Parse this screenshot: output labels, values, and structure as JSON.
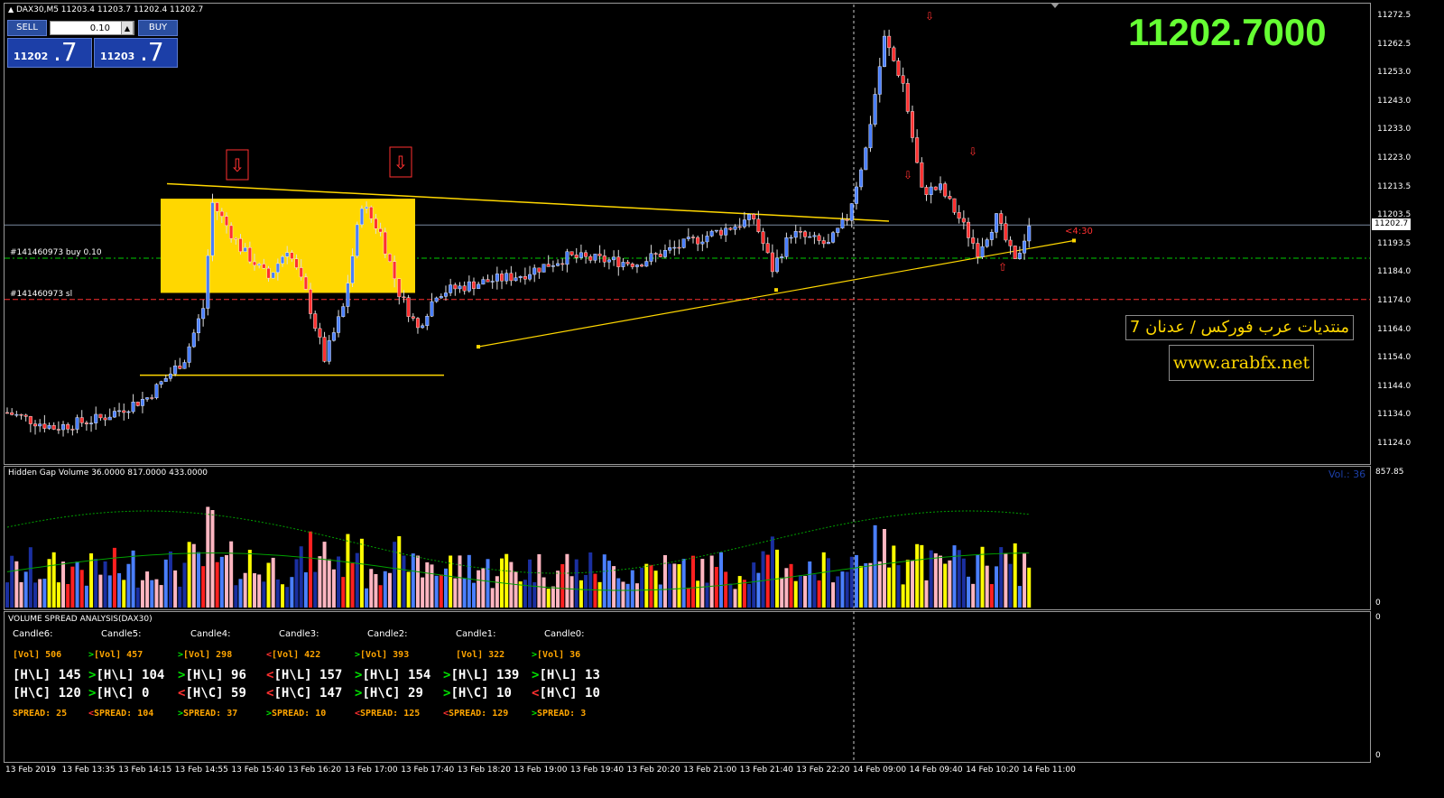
{
  "chart_header": "DAX30,M5  11203.4 11203.7 11202.4 11202.7",
  "big_price": "11202.7000",
  "trade_panel": {
    "sell_label": "SELL",
    "buy_label": "BUY",
    "lot": "0.10",
    "sell_main": "11202",
    "sell_big": ".7",
    "buy_main": "11203",
    "buy_big": ".7"
  },
  "order_lines": {
    "buy_label": "#141460973 buy 0.10",
    "sl_label": "#141460973 sl"
  },
  "countdown": "<4:30",
  "watermark": {
    "arabic": "منتديات عرب فوركس / عدنان 7",
    "url": "www.arabfx.net"
  },
  "price_axis": {
    "labels": [
      "11272.5",
      "11262.5",
      "11253.0",
      "11243.0",
      "11233.0",
      "11223.0",
      "11213.5",
      "11203.5",
      "11193.5",
      "11184.0",
      "11174.0",
      "11164.0",
      "11154.0",
      "11144.0",
      "11134.0",
      "11124.0"
    ],
    "current": "11202.7"
  },
  "volume_panel": {
    "title": "Hidden Gap Volume 36.0000 817.0000 433.0000",
    "max_label": "857.85",
    "zero_label": "0",
    "vol_label": "Vol.: 36"
  },
  "vsa_panel": {
    "title": "VOLUME SPREAD ANALYSIS(DAX30)",
    "zero_label": "0",
    "bottom_zero": "0",
    "candles": [
      {
        "name": "Candle6:",
        "vol_arrow": "",
        "vol": "[Vol] 506",
        "hl_arrow": "",
        "hl": "[H\\L] 145",
        "hc_arrow": "",
        "hc": "[H\\C] 120",
        "sp_arrow": "",
        "sp": "SPREAD:  25"
      },
      {
        "name": "Candle5:",
        "vol_arrow": ">",
        "vol": "[Vol] 457",
        "hl_arrow": ">",
        "hl": "[H\\L] 104",
        "hc_arrow": ">",
        "hc": "[H\\C] 0",
        "sp_arrow": "<",
        "sp": "SPREAD:  104"
      },
      {
        "name": "Candle4:",
        "vol_arrow": ">",
        "vol": "[Vol] 298",
        "hl_arrow": ">",
        "hl": "[H\\L] 96",
        "hc_arrow": "<",
        "hc": "[H\\C] 59",
        "sp_arrow": ">",
        "sp": "SPREAD:  37"
      },
      {
        "name": "Candle3:",
        "vol_arrow": "<",
        "vol": "[Vol] 422",
        "hl_arrow": "<",
        "hl": "[H\\L] 157",
        "hc_arrow": "<",
        "hc": "[H\\C] 147",
        "sp_arrow": ">",
        "sp": "SPREAD:  10"
      },
      {
        "name": "Candle2:",
        "vol_arrow": ">",
        "vol": "[Vol] 393",
        "hl_arrow": ">",
        "hl": "[H\\L] 154",
        "hc_arrow": ">",
        "hc": "[H\\C] 29",
        "sp_arrow": "<",
        "sp": "SPREAD:  125"
      },
      {
        "name": "Candle1:",
        "vol_arrow": "",
        "vol": "[Vol] 322",
        "hl_arrow": ">",
        "hl": "[H\\L] 139",
        "hc_arrow": ">",
        "hc": "[H\\C] 10",
        "sp_arrow": "<",
        "sp": "SPREAD:  129"
      },
      {
        "name": "Candle0:",
        "vol_arrow": ">",
        "vol": "[Vol] 36",
        "hl_arrow": ">",
        "hl": "[H\\L] 13",
        "hc_arrow": "<",
        "hc": "[H\\C] 10",
        "sp_arrow": ">",
        "sp": "SPREAD:  3"
      }
    ]
  },
  "time_axis": [
    "13 Feb 2019",
    "13 Feb 13:35",
    "13 Feb 14:15",
    "13 Feb 14:55",
    "13 Feb 15:40",
    "13 Feb 16:20",
    "13 Feb 17:00",
    "13 Feb 17:40",
    "13 Feb 18:20",
    "13 Feb 19:00",
    "13 Feb 19:40",
    "13 Feb 20:20",
    "13 Feb 21:00",
    "13 Feb 21:40",
    "13 Feb 22:20",
    "14 Feb 09:00",
    "14 Feb 09:40",
    "14 Feb 10:20",
    "14 Feb 11:00"
  ],
  "colors": {
    "bull": "#4a7fff",
    "bear": "#ff3030",
    "zone": "#ffd700",
    "trend": "#ffd700",
    "big_price": "#66ff33",
    "vol_orange": "#ffa500"
  },
  "icons": [
    "sell-arrow-icon",
    "buy-arrow-icon",
    "scroll-marker-icon"
  ]
}
